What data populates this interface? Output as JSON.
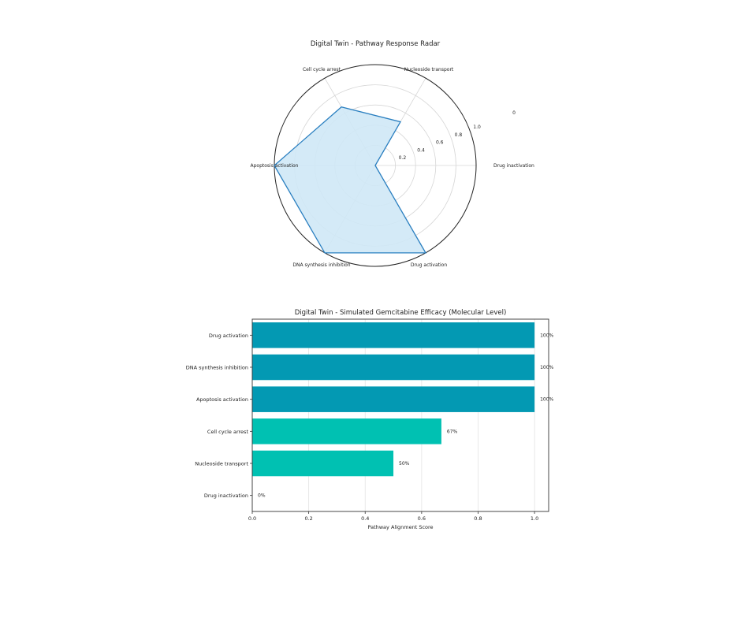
{
  "chart_data": [
    {
      "type": "radar",
      "title": "Digital Twin - Pathway Response Radar",
      "categories": [
        "Drug inactivation",
        "Nucleoside transport",
        "Cell cycle arrest",
        "Apoptosis activation",
        "DNA synthesis inhibition",
        "Drug activation"
      ],
      "values": [
        0.0,
        0.5,
        0.67,
        1.0,
        1.0,
        1.0
      ],
      "radial_ticks": [
        "0.2",
        "0.4",
        "0.6",
        "0.8",
        "1.0"
      ],
      "rlim": [
        0,
        1
      ],
      "stray_label": "0",
      "fill_color": "#cfe8f6",
      "line_color": "#2a7fc0"
    },
    {
      "type": "bar",
      "orientation": "horizontal",
      "title": "Digital Twin - Simulated Gemcitabine Efficacy (Molecular Level)",
      "categories": [
        "Drug activation",
        "DNA synthesis inhibition",
        "Apoptosis activation",
        "Cell cycle arrest",
        "Nucleoside transport",
        "Drug inactivation"
      ],
      "values": [
        1.0,
        1.0,
        1.0,
        0.67,
        0.5,
        0.0
      ],
      "value_labels": [
        "100%",
        "100%",
        "100%",
        "67%",
        "50%",
        "0%"
      ],
      "colors": [
        "#0399b3",
        "#0399b3",
        "#0399b3",
        "#00c1b2",
        "#00c1b2",
        "#00c1b2"
      ],
      "xlabel": "Pathway Alignment Score",
      "xlim": [
        0,
        1.05
      ],
      "xticks": [
        "0.0",
        "0.2",
        "0.4",
        "0.6",
        "0.8",
        "1.0"
      ],
      "grid": true
    }
  ]
}
